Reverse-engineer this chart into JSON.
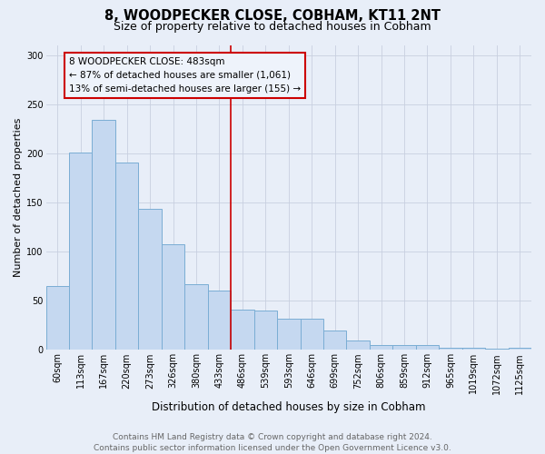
{
  "title": "8, WOODPECKER CLOSE, COBHAM, KT11 2NT",
  "subtitle": "Size of property relative to detached houses in Cobham",
  "xlabel": "Distribution of detached houses by size in Cobham",
  "ylabel": "Number of detached properties",
  "categories": [
    "60sqm",
    "113sqm",
    "167sqm",
    "220sqm",
    "273sqm",
    "326sqm",
    "380sqm",
    "433sqm",
    "486sqm",
    "539sqm",
    "593sqm",
    "646sqm",
    "699sqm",
    "752sqm",
    "806sqm",
    "859sqm",
    "912sqm",
    "965sqm",
    "1019sqm",
    "1072sqm",
    "1125sqm"
  ],
  "values": [
    65,
    201,
    234,
    191,
    144,
    108,
    67,
    60,
    41,
    40,
    32,
    32,
    20,
    10,
    5,
    5,
    5,
    2,
    2,
    1,
    2
  ],
  "bar_color": "#c5d8f0",
  "bar_edge_color": "#7aadd4",
  "vline_x": 7.5,
  "vline_color": "#cc0000",
  "ann_line1": "8 WOODPECKER CLOSE: 483sqm",
  "ann_line2": "← 87% of detached houses are smaller (1,061)",
  "ann_line3": "13% of semi-detached houses are larger (155) →",
  "ann_box_edgecolor": "#cc0000",
  "ann_box_facecolor": "#eef3fb",
  "ylim": [
    0,
    310
  ],
  "yticks": [
    0,
    50,
    100,
    150,
    200,
    250,
    300
  ],
  "footer_text": "Contains HM Land Registry data © Crown copyright and database right 2024.\nContains public sector information licensed under the Open Government Licence v3.0.",
  "bg_color": "#e8eef8",
  "grid_color": "#c8cfe0",
  "title_fontsize": 10.5,
  "subtitle_fontsize": 9,
  "xlabel_fontsize": 8.5,
  "ylabel_fontsize": 8,
  "tick_fontsize": 7,
  "ann_fontsize": 7.5,
  "footer_fontsize": 6.5
}
